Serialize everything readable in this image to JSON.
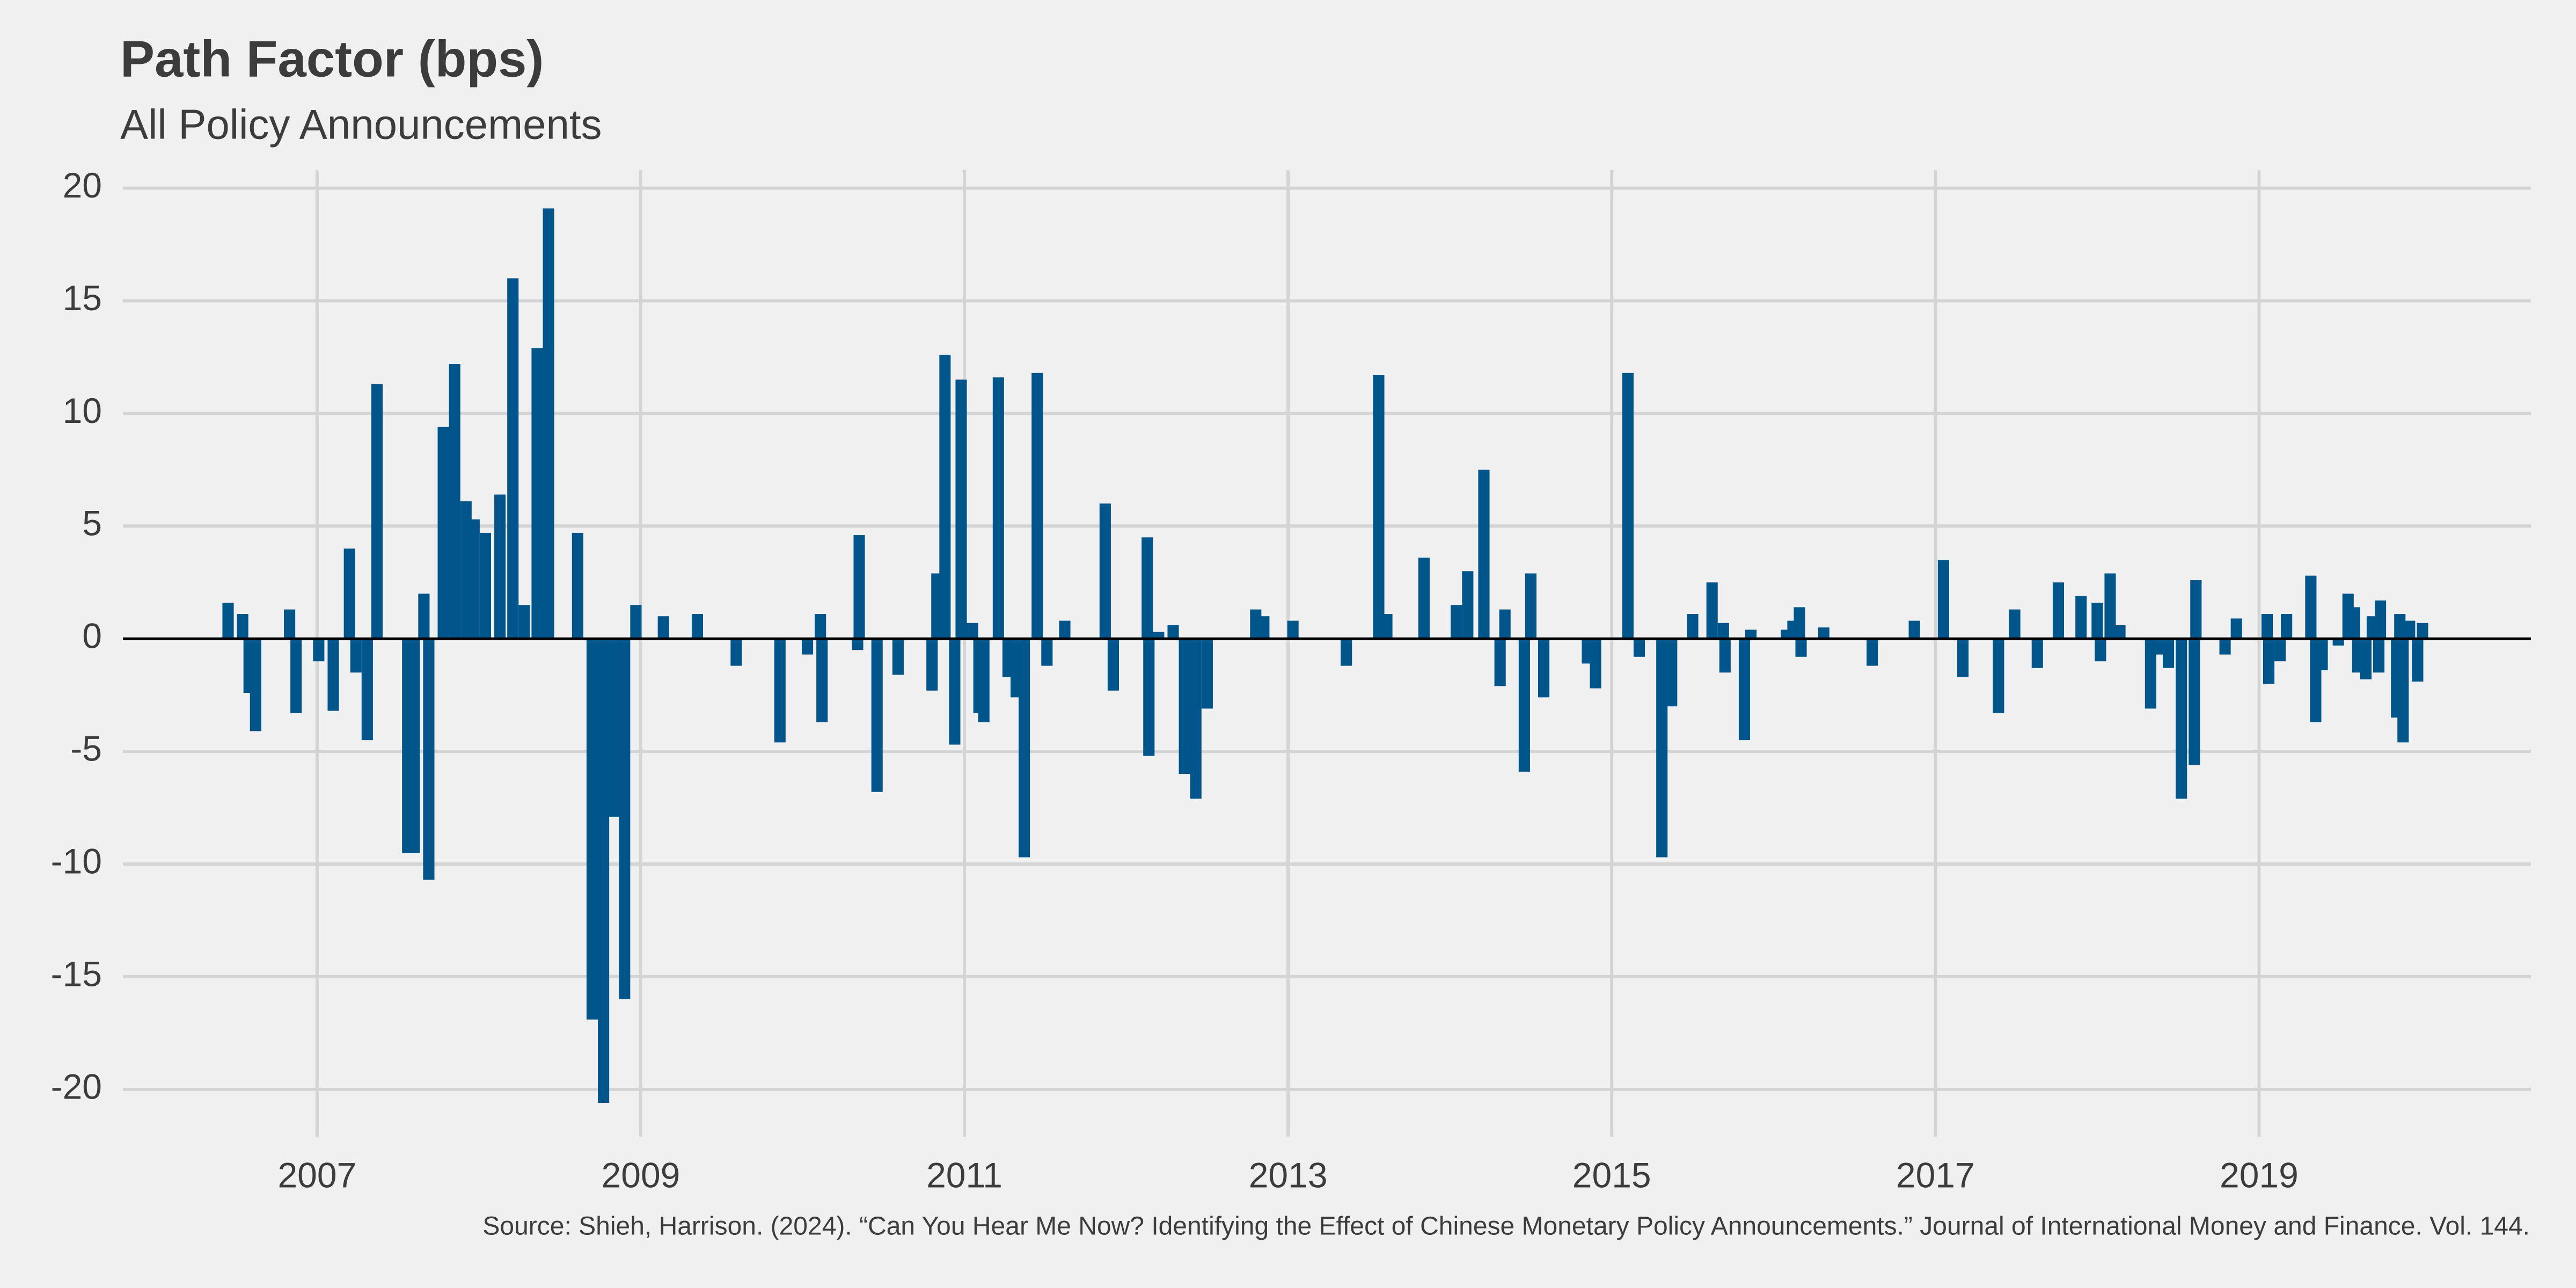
{
  "chart_data": {
    "type": "bar",
    "title": "Path Factor (bps)",
    "subtitle": "All Policy Announcements",
    "source": "Source: Shieh, Harrison. (2024). “Can You Hear Me Now? Identifying the Effect of Chinese Monetary Policy Announcements.” Journal of International Money and Finance. Vol. 144.",
    "color": "#00558a",
    "grid": true,
    "xlim": [
      2005.8,
      2020.68
    ],
    "xticks": [
      2007,
      2009,
      2011,
      2013,
      2015,
      2017,
      2019
    ],
    "ylim": [
      -22.1,
      20.8
    ],
    "yticks": [
      -20,
      -15,
      -10,
      -5,
      0,
      5,
      10,
      15,
      20
    ],
    "x": [
      2006.45,
      2006.54,
      2006.58,
      2006.62,
      2006.83,
      2006.87,
      2007.01,
      2007.1,
      2007.2,
      2007.24,
      2007.31,
      2007.37,
      2007.56,
      2007.6,
      2007.66,
      2007.69,
      2007.78,
      2007.85,
      2007.92,
      2007.97,
      2008.04,
      2008.13,
      2008.21,
      2008.28,
      2008.36,
      2008.43,
      2008.61,
      2008.7,
      2008.77,
      2008.83,
      2008.9,
      2008.97,
      2009.14,
      2009.35,
      2009.59,
      2009.86,
      2010.03,
      2010.11,
      2010.12,
      2010.34,
      2010.35,
      2010.46,
      2010.59,
      2010.8,
      2010.83,
      2010.88,
      2010.94,
      2010.98,
      2011.05,
      2011.09,
      2011.12,
      2011.21,
      2011.27,
      2011.32,
      2011.37,
      2011.45,
      2011.51,
      2011.62,
      2011.87,
      2011.92,
      2012.13,
      2012.14,
      2012.2,
      2012.29,
      2012.36,
      2012.43,
      2012.5,
      2012.8,
      2012.85,
      2013.03,
      2013.36,
      2013.56,
      2013.61,
      2013.84,
      2014.04,
      2014.11,
      2014.21,
      2014.31,
      2014.34,
      2014.46,
      2014.5,
      2014.58,
      2014.85,
      2014.9,
      2015.1,
      2015.17,
      2015.31,
      2015.37,
      2015.5,
      2015.62,
      2015.69,
      2015.7,
      2015.82,
      2015.86,
      2016.08,
      2016.12,
      2016.16,
      2016.17,
      2016.31,
      2016.61,
      2016.87,
      2017.05,
      2017.17,
      2017.39,
      2017.49,
      2017.63,
      2017.76,
      2017.9,
      2018.0,
      2018.02,
      2018.08,
      2018.14,
      2018.33,
      2018.38,
      2018.44,
      2018.52,
      2018.6,
      2018.61,
      2018.79,
      2018.86,
      2019.05,
      2019.06,
      2019.13,
      2019.17,
      2019.32,
      2019.35,
      2019.39,
      2019.49,
      2019.55,
      2019.59,
      2019.61,
      2019.66,
      2019.7,
      2019.74,
      2019.75,
      2019.85,
      2019.87,
      2019.89,
      2019.93,
      2019.98,
      2020.01
    ],
    "values": [
      1.6,
      1.1,
      -2.4,
      -4.1,
      1.3,
      -3.3,
      -1.0,
      -3.2,
      4.0,
      -1.5,
      -4.5,
      11.3,
      -9.5,
      -9.5,
      2.0,
      -10.7,
      9.4,
      12.2,
      6.1,
      5.3,
      4.7,
      6.4,
      16.0,
      1.5,
      12.9,
      19.1,
      4.7,
      -16.9,
      -20.6,
      -7.9,
      -16.0,
      1.5,
      1.0,
      1.1,
      -1.2,
      -4.6,
      -0.7,
      1.1,
      -3.7,
      -0.5,
      4.6,
      -6.8,
      -1.6,
      -2.3,
      2.9,
      12.6,
      -4.7,
      11.5,
      0.7,
      -3.3,
      -3.7,
      11.6,
      -1.7,
      -2.6,
      -9.7,
      11.8,
      -1.2,
      0.8,
      6.0,
      -2.3,
      4.5,
      -5.2,
      0.3,
      0.6,
      -6.0,
      -7.1,
      -3.1,
      1.3,
      1.0,
      0.8,
      -1.2,
      11.7,
      1.1,
      3.6,
      1.5,
      3.0,
      7.5,
      -2.1,
      1.3,
      -5.9,
      2.9,
      -2.6,
      -1.1,
      -2.2,
      11.8,
      -0.8,
      -9.7,
      -3.0,
      1.1,
      2.5,
      0.7,
      -1.5,
      -4.5,
      0.4,
      0.4,
      0.8,
      1.4,
      -0.8,
      0.5,
      -1.2,
      0.8,
      3.5,
      -1.7,
      -3.3,
      1.3,
      -1.3,
      2.5,
      1.9,
      1.6,
      -1.0,
      2.9,
      0.6,
      -3.1,
      -0.7,
      -1.3,
      -7.1,
      -5.6,
      2.6,
      -0.7,
      0.9,
      1.1,
      -2.0,
      -1.0,
      1.1,
      2.8,
      -3.7,
      -1.4,
      -0.3,
      2.0,
      1.4,
      -1.5,
      -1.8,
      1.0,
      -1.5,
      1.7,
      -3.5,
      1.1,
      -4.6,
      0.8,
      -1.9,
      0.7
    ]
  }
}
